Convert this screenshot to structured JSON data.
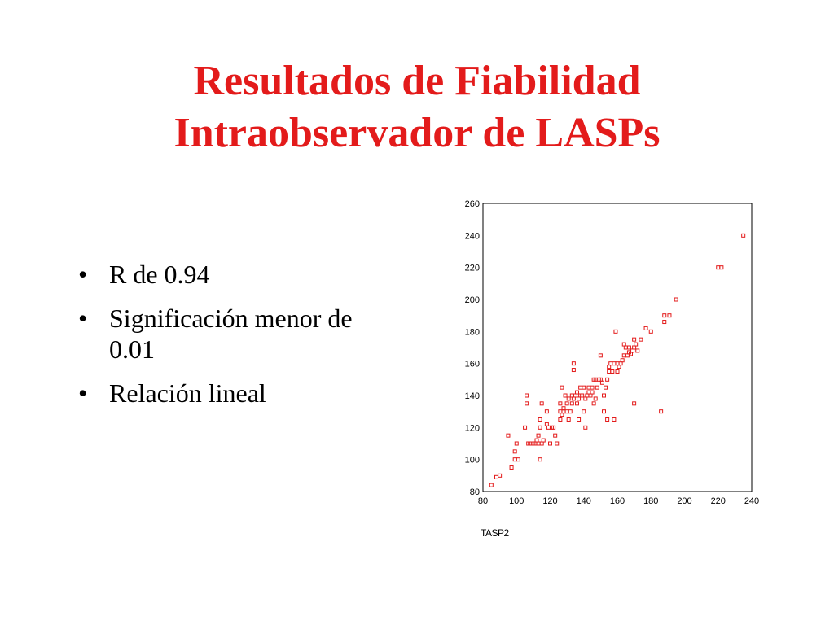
{
  "slide": {
    "title_lines": [
      "Resultados de Fiabilidad",
      "Intraobservador de LASPs"
    ],
    "bullets": [
      "R de 0.94",
      "Significación menor de 0.01",
      "Relación lineal"
    ],
    "bullet_symbol": "•",
    "title_color": "#e31b1b"
  },
  "chart_data": {
    "type": "scatter",
    "title": "",
    "xlabel": "TASP2",
    "ylabel": "",
    "xlim": [
      80,
      240
    ],
    "ylim": [
      80,
      260
    ],
    "x_ticks": [
      80,
      100,
      120,
      140,
      160,
      180,
      200,
      220,
      240
    ],
    "y_ticks": [
      80,
      100,
      120,
      140,
      160,
      180,
      200,
      220,
      240,
      260
    ],
    "marker": "hollow-square",
    "color": "#e31b1b",
    "grid": false,
    "legend": "none",
    "series": [
      {
        "points": [
          [
            85,
            84
          ],
          [
            88,
            89
          ],
          [
            90,
            90
          ],
          [
            95,
            115
          ],
          [
            97,
            95
          ],
          [
            99,
            100
          ],
          [
            99,
            105
          ],
          [
            100,
            110
          ],
          [
            101,
            100
          ],
          [
            105,
            120
          ],
          [
            106,
            140
          ],
          [
            106,
            135
          ],
          [
            107,
            110
          ],
          [
            108,
            110
          ],
          [
            110,
            110
          ],
          [
            111,
            110
          ],
          [
            112,
            112
          ],
          [
            113,
            110
          ],
          [
            113,
            115
          ],
          [
            114,
            125
          ],
          [
            114,
            120
          ],
          [
            114,
            100
          ],
          [
            115,
            135
          ],
          [
            115,
            110
          ],
          [
            116,
            112
          ],
          [
            118,
            130
          ],
          [
            118,
            122
          ],
          [
            119,
            120
          ],
          [
            120,
            110
          ],
          [
            121,
            120
          ],
          [
            122,
            120
          ],
          [
            123,
            115
          ],
          [
            124,
            110
          ],
          [
            126,
            130
          ],
          [
            126,
            125
          ],
          [
            126,
            135
          ],
          [
            127,
            145
          ],
          [
            127,
            128
          ],
          [
            128,
            132
          ],
          [
            128,
            130
          ],
          [
            129,
            140
          ],
          [
            130,
            130
          ],
          [
            130,
            135
          ],
          [
            131,
            138
          ],
          [
            131,
            125
          ],
          [
            132,
            130
          ],
          [
            133,
            135
          ],
          [
            133,
            140
          ],
          [
            134,
            156
          ],
          [
            134,
            160
          ],
          [
            134,
            138
          ],
          [
            135,
            140
          ],
          [
            136,
            142
          ],
          [
            136,
            135
          ],
          [
            137,
            138
          ],
          [
            137,
            125
          ],
          [
            138,
            145
          ],
          [
            138,
            140
          ],
          [
            139,
            140
          ],
          [
            140,
            145
          ],
          [
            140,
            130
          ],
          [
            141,
            138
          ],
          [
            141,
            120
          ],
          [
            142,
            140
          ],
          [
            143,
            142
          ],
          [
            143,
            145
          ],
          [
            144,
            140
          ],
          [
            145,
            145
          ],
          [
            145,
            142
          ],
          [
            146,
            150
          ],
          [
            146,
            135
          ],
          [
            147,
            150
          ],
          [
            147,
            138
          ],
          [
            148,
            145
          ],
          [
            149,
            150
          ],
          [
            150,
            165
          ],
          [
            150,
            150
          ],
          [
            151,
            148
          ],
          [
            152,
            140
          ],
          [
            152,
            130
          ],
          [
            153,
            145
          ],
          [
            154,
            150
          ],
          [
            154,
            125
          ],
          [
            155,
            158
          ],
          [
            155,
            155
          ],
          [
            156,
            160
          ],
          [
            157,
            155
          ],
          [
            158,
            160
          ],
          [
            158,
            125
          ],
          [
            159,
            180
          ],
          [
            160,
            160
          ],
          [
            160,
            155
          ],
          [
            161,
            158
          ],
          [
            162,
            160
          ],
          [
            163,
            162
          ],
          [
            164,
            165
          ],
          [
            164,
            172
          ],
          [
            165,
            170
          ],
          [
            166,
            165
          ],
          [
            167,
            167
          ],
          [
            167,
            170
          ],
          [
            168,
            166
          ],
          [
            169,
            168
          ],
          [
            170,
            175
          ],
          [
            170,
            170
          ],
          [
            170,
            135
          ],
          [
            171,
            172
          ],
          [
            172,
            168
          ],
          [
            174,
            175
          ],
          [
            177,
            182
          ],
          [
            180,
            180
          ],
          [
            186,
            130
          ],
          [
            188,
            190
          ],
          [
            188,
            186
          ],
          [
            191,
            190
          ],
          [
            195,
            200
          ],
          [
            220,
            220
          ],
          [
            222,
            220
          ],
          [
            235,
            240
          ]
        ]
      }
    ]
  }
}
